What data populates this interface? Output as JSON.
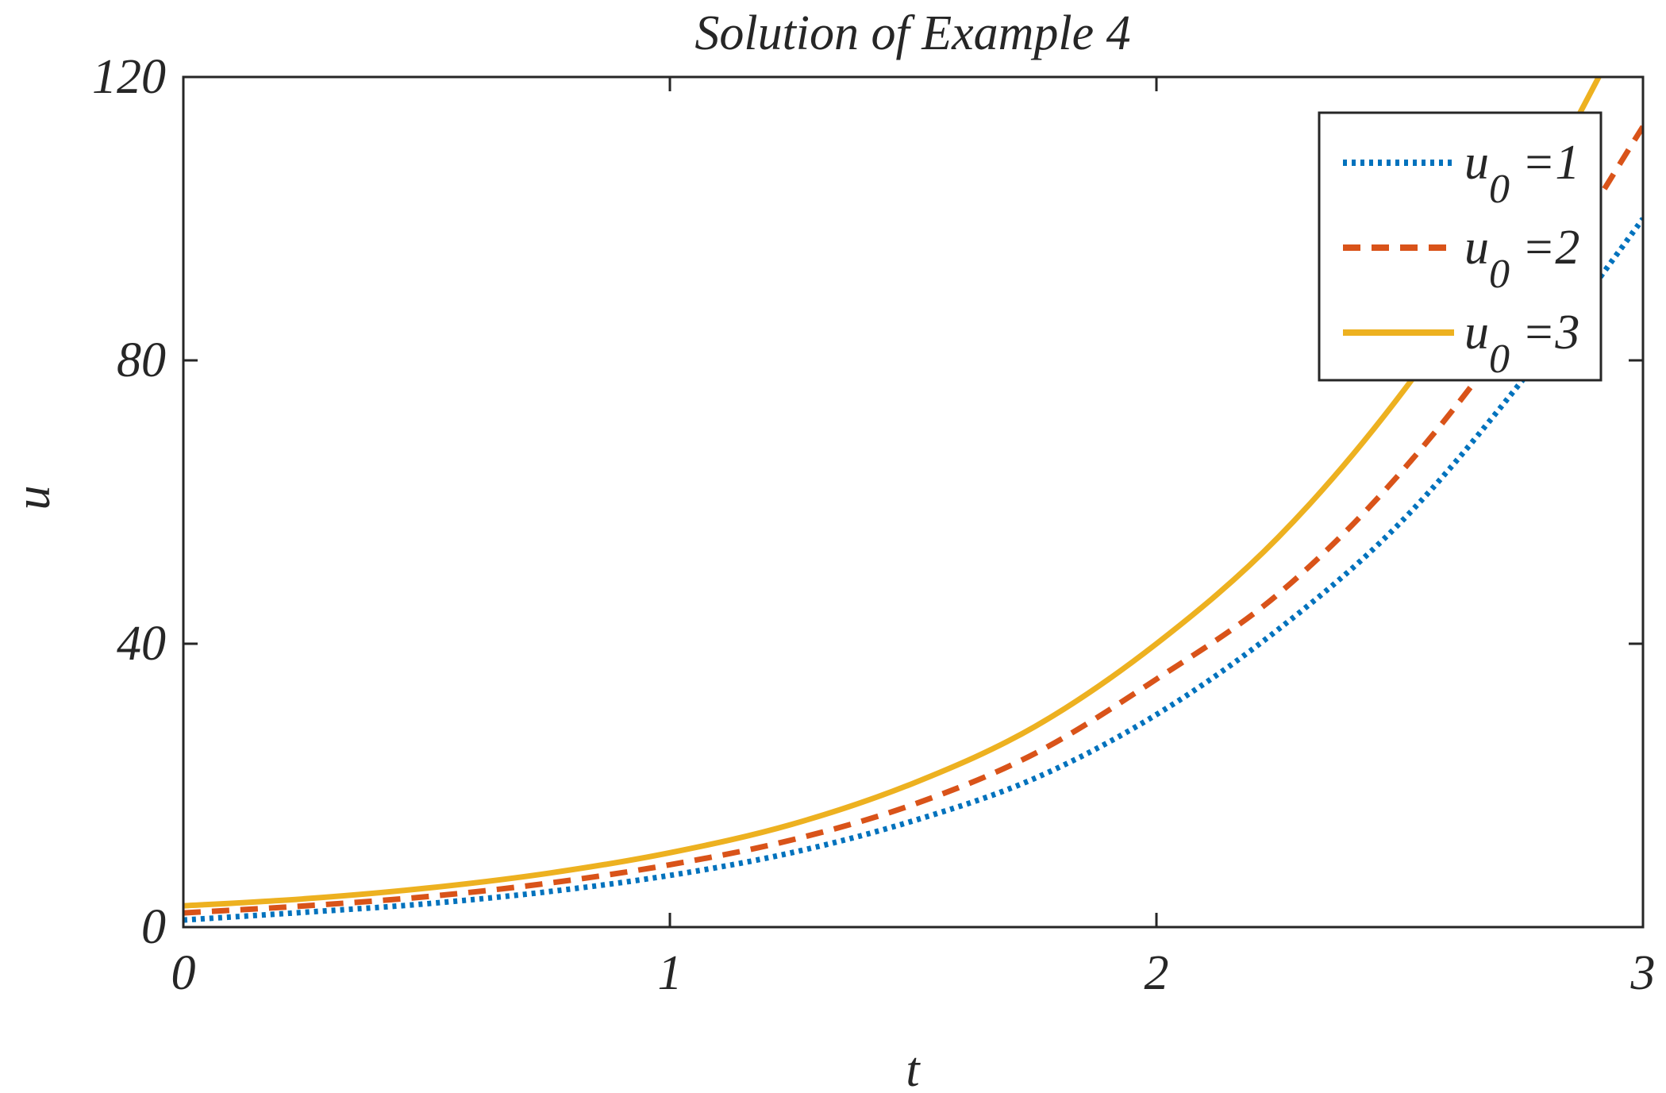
{
  "chart_data": {
    "type": "line",
    "title": "Solution of Example 4",
    "xlabel": "t",
    "ylabel": "u",
    "xlim": [
      0,
      3
    ],
    "ylim": [
      0,
      120
    ],
    "xticks": [
      0,
      1,
      2,
      3
    ],
    "xtick_labels": [
      "0",
      "1",
      "2",
      "3"
    ],
    "yticks": [
      0,
      40,
      80,
      120
    ],
    "ytick_labels": [
      "0",
      "40",
      "80",
      "120"
    ],
    "grid": false,
    "legend_position": "top-right",
    "x": [
      0,
      0.25,
      0.5,
      0.75,
      1.0,
      1.25,
      1.5,
      1.75,
      2.0,
      2.25,
      2.5,
      2.75,
      3.0
    ],
    "series": [
      {
        "name": "u0 =1",
        "legend_main": "u",
        "legend_sub": "0",
        "legend_suffix": " =1",
        "color": "#0072BD",
        "style": "dotted",
        "values": [
          1,
          2.1,
          3.3,
          5,
          7.3,
          10.5,
          15,
          21,
          30,
          42,
          57,
          77,
          100
        ]
      },
      {
        "name": "u0 =2",
        "legend_main": "u",
        "legend_sub": "0",
        "legend_suffix": " =2",
        "color": "#D95319",
        "style": "dashed",
        "values": [
          2,
          3,
          4.3,
          6.2,
          8.8,
          12.3,
          17.3,
          24.5,
          35,
          47,
          64,
          86,
          113
        ]
      },
      {
        "name": "u0 =3",
        "legend_main": "u",
        "legend_sub": "0",
        "legend_suffix": " =3",
        "color": "#EDB120",
        "style": "solid",
        "values": [
          3,
          4,
          5.5,
          7.6,
          10.5,
          14.5,
          20.3,
          28.3,
          40,
          55,
          75,
          100,
          132
        ]
      }
    ]
  }
}
